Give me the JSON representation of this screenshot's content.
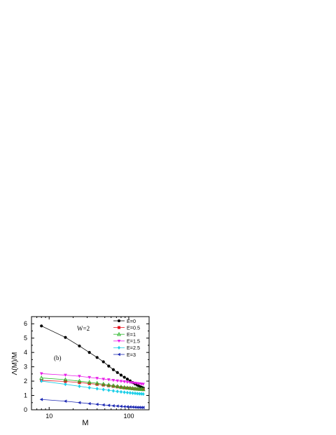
{
  "chart_data": {
    "type": "line",
    "title": "",
    "panel_label": "(b)",
    "annotation": "W=2",
    "xlabel": "M",
    "ylabel": "Λ(M)/M",
    "x_scale": "log",
    "xlim": [
      6,
      180
    ],
    "ylim": [
      0,
      6.5
    ],
    "x_ticks": [
      {
        "value": 10,
        "label": "10"
      },
      {
        "value": 100,
        "label": "100"
      }
    ],
    "y_ticks": [
      {
        "value": 0,
        "label": "0"
      },
      {
        "value": 1,
        "label": "1"
      },
      {
        "value": 2,
        "label": "2"
      },
      {
        "value": 3,
        "label": "3"
      },
      {
        "value": 4,
        "label": "4"
      },
      {
        "value": 5,
        "label": "5"
      },
      {
        "value": 6,
        "label": "6"
      }
    ],
    "grid": false,
    "legend_position": "top-right",
    "series": [
      {
        "name": "E=0",
        "color": "#000000",
        "marker": "circle",
        "x": [
          8,
          16,
          24,
          32,
          40,
          48,
          56,
          64,
          72,
          80,
          88,
          96,
          104,
          112,
          120,
          128,
          136,
          144,
          152
        ],
        "y": [
          5.85,
          5.05,
          4.45,
          4.0,
          3.65,
          3.35,
          3.05,
          2.8,
          2.6,
          2.42,
          2.27,
          2.14,
          2.02,
          1.9,
          1.8,
          1.72,
          1.64,
          1.58,
          1.52
        ]
      },
      {
        "name": "E=0.5",
        "color": "#e8141e",
        "marker": "square",
        "x": [
          8,
          16,
          24,
          32,
          40,
          48,
          56,
          64,
          72,
          80,
          88,
          96,
          104,
          112,
          120,
          128,
          136,
          144,
          152
        ],
        "y": [
          2.05,
          1.98,
          1.9,
          1.83,
          1.78,
          1.73,
          1.68,
          1.64,
          1.6,
          1.56,
          1.53,
          1.51,
          1.49,
          1.47,
          1.45,
          1.44,
          1.43,
          1.42,
          1.41
        ]
      },
      {
        "name": "E=1",
        "color": "#2bb72b",
        "marker": "triangle-up",
        "x": [
          8,
          16,
          24,
          32,
          40,
          48,
          56,
          64,
          72,
          80,
          88,
          96,
          104,
          112,
          120,
          128,
          136,
          144,
          152
        ],
        "y": [
          2.22,
          2.1,
          2.0,
          1.92,
          1.85,
          1.79,
          1.73,
          1.68,
          1.63,
          1.59,
          1.56,
          1.53,
          1.51,
          1.49,
          1.47,
          1.46,
          1.45,
          1.44,
          1.43
        ]
      },
      {
        "name": "E=1.5",
        "color": "#e81ee8",
        "marker": "triangle-down",
        "x": [
          8,
          16,
          24,
          32,
          40,
          48,
          56,
          64,
          72,
          80,
          88,
          96,
          104,
          112,
          120,
          128,
          136,
          144,
          152
        ],
        "y": [
          2.52,
          2.42,
          2.34,
          2.26,
          2.2,
          2.14,
          2.1,
          2.06,
          2.02,
          1.99,
          1.96,
          1.93,
          1.9,
          1.88,
          1.86,
          1.84,
          1.82,
          1.8,
          1.79
        ]
      },
      {
        "name": "E=2.5",
        "color": "#1ecfe8",
        "marker": "diamond",
        "x": [
          8,
          16,
          24,
          32,
          40,
          48,
          56,
          64,
          72,
          80,
          88,
          96,
          104,
          112,
          120,
          128,
          136,
          144,
          152
        ],
        "y": [
          2.0,
          1.78,
          1.64,
          1.54,
          1.47,
          1.41,
          1.36,
          1.32,
          1.28,
          1.25,
          1.22,
          1.2,
          1.18,
          1.16,
          1.15,
          1.13,
          1.12,
          1.11,
          1.1
        ]
      },
      {
        "name": "E=3",
        "color": "#1e2ab4",
        "marker": "triangle-left",
        "x": [
          8,
          16,
          24,
          32,
          40,
          48,
          56,
          64,
          72,
          80,
          88,
          96,
          104,
          112,
          120,
          128,
          136,
          144,
          152
        ],
        "y": [
          0.72,
          0.6,
          0.5,
          0.43,
          0.38,
          0.34,
          0.31,
          0.28,
          0.26,
          0.24,
          0.22,
          0.21,
          0.2,
          0.19,
          0.18,
          0.17,
          0.17,
          0.16,
          0.16
        ]
      }
    ]
  }
}
